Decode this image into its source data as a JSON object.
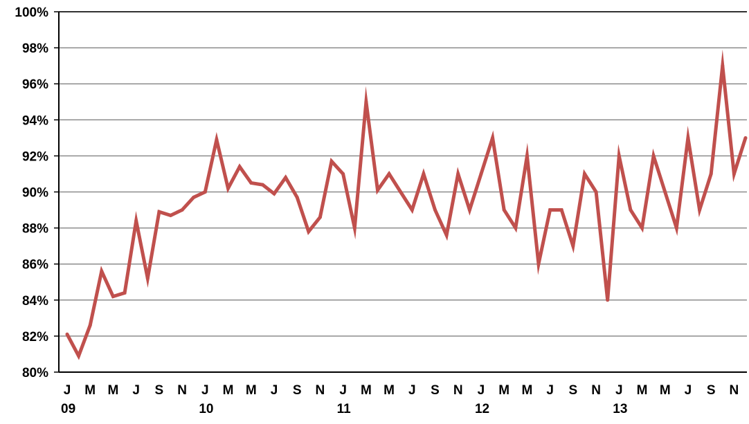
{
  "chart_data": {
    "type": "line",
    "title": "",
    "xlabel": "",
    "ylabel": "",
    "ylim": [
      80,
      100
    ],
    "y_tick_step": 2,
    "y_tick_labels": [
      "80%",
      "82%",
      "84%",
      "86%",
      "88%",
      "90%",
      "92%",
      "94%",
      "96%",
      "98%",
      "100%"
    ],
    "grid": "horizontal",
    "legend": "none",
    "month_tick_labels": [
      "J",
      "M",
      "M",
      "J",
      "S",
      "N",
      "J",
      "M",
      "M",
      "J",
      "S",
      "N",
      "J",
      "M",
      "M",
      "J",
      "S",
      "N",
      "J",
      "M",
      "M",
      "J",
      "S",
      "N",
      "J",
      "M",
      "M",
      "J",
      "S",
      "N"
    ],
    "year_tick_labels": [
      "09",
      "10",
      "11",
      "12",
      "13"
    ],
    "x": [
      "2009-01",
      "2009-02",
      "2009-03",
      "2009-04",
      "2009-05",
      "2009-06",
      "2009-07",
      "2009-08",
      "2009-09",
      "2009-10",
      "2009-11",
      "2009-12",
      "2010-01",
      "2010-02",
      "2010-03",
      "2010-04",
      "2010-05",
      "2010-06",
      "2010-07",
      "2010-08",
      "2010-09",
      "2010-10",
      "2010-11",
      "2010-12",
      "2011-01",
      "2011-02",
      "2011-03",
      "2011-04",
      "2011-05",
      "2011-06",
      "2011-07",
      "2011-08",
      "2011-09",
      "2011-10",
      "2011-11",
      "2011-12",
      "2012-01",
      "2012-02",
      "2012-03",
      "2012-04",
      "2012-05",
      "2012-06",
      "2012-07",
      "2012-08",
      "2012-09",
      "2012-10",
      "2012-11",
      "2012-12",
      "2013-01",
      "2013-02",
      "2013-03",
      "2013-04",
      "2013-05",
      "2013-06",
      "2013-07",
      "2013-08",
      "2013-09",
      "2013-10",
      "2013-11",
      "2013-12"
    ],
    "series": [
      {
        "color": "#c0504d",
        "values": [
          82.1,
          80.9,
          82.6,
          85.6,
          84.2,
          84.4,
          88.4,
          85.2,
          88.9,
          88.7,
          89.0,
          89.7,
          90.0,
          92.9,
          90.2,
          91.4,
          90.5,
          90.4,
          89.9,
          90.8,
          89.7,
          87.8,
          88.6,
          91.7,
          91.0,
          88.0,
          95.0,
          90.1,
          91.0,
          90.0,
          89.0,
          91.0,
          89.0,
          87.6,
          91.0,
          89.0,
          91.0,
          93.0,
          89.0,
          88.0,
          92.0,
          86.0,
          89.0,
          89.0,
          87.0,
          91.0,
          90.0,
          84.0,
          92.0,
          89.0,
          88.0,
          92.0,
          90.0,
          88.0,
          93.0,
          89.0,
          91.0,
          97.0,
          91.0,
          93.0
        ]
      }
    ]
  }
}
